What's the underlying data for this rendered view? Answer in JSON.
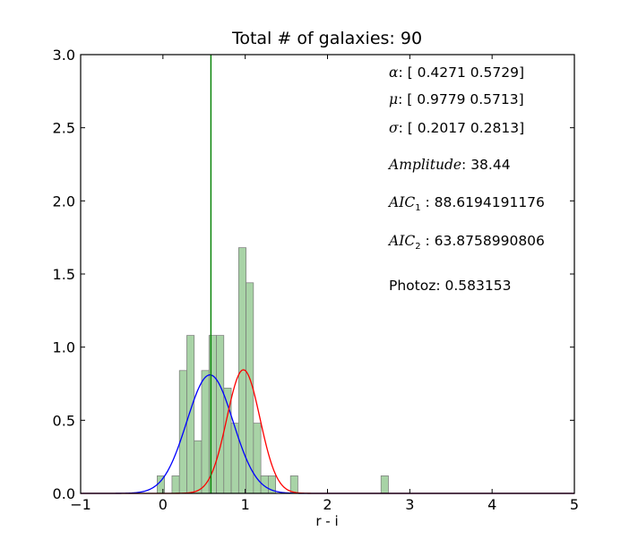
{
  "chart_data": {
    "type": "bar",
    "title": "Total # of galaxies: 90",
    "xlabel": "r - i",
    "ylabel": "",
    "xlim": [
      -1,
      5
    ],
    "ylim": [
      0,
      3.0
    ],
    "x_ticks": [
      "−1",
      "0",
      "1",
      "2",
      "3",
      "4",
      "5"
    ],
    "y_ticks": [
      "0.0",
      "0.5",
      "1.0",
      "1.5",
      "2.0",
      "2.5",
      "3.0"
    ],
    "grid": false,
    "histogram": {
      "bin_width": 0.09,
      "bin_left_edges": [
        -0.07,
        0.11,
        0.2,
        0.29,
        0.38,
        0.47,
        0.56,
        0.65,
        0.74,
        0.83,
        0.92,
        1.01,
        1.1,
        1.19,
        1.28,
        1.55,
        2.65
      ],
      "density": [
        0.12,
        0.12,
        0.84,
        1.08,
        0.36,
        0.84,
        1.08,
        1.08,
        0.72,
        0.48,
        1.68,
        1.44,
        0.48,
        0.12,
        0.12,
        0.12,
        0.12
      ],
      "color": "#a8d3a6",
      "edge_color": "#777777"
    },
    "curves": [
      {
        "color": "#0000ff",
        "mu": 0.5713,
        "sigma": 0.2813,
        "peak": 0.81
      },
      {
        "color": "#ff0000",
        "mu": 0.9779,
        "sigma": 0.2017,
        "peak": 0.845
      }
    ],
    "vline": {
      "x": 0.583153,
      "color": "#008000"
    },
    "annotations": [
      {
        "symbol": "α",
        "text": ": [ 0.4271  0.5729]"
      },
      {
        "symbol": "μ",
        "text": ": [ 0.9779  0.5713]"
      },
      {
        "symbol": "σ",
        "text": ": [ 0.2017  0.2813]"
      },
      {
        "symbol": "Amplitude",
        "text": ": 38.44"
      },
      {
        "symbol": "AIC",
        "sub": "1",
        "text": " : 88.6194191176"
      },
      {
        "symbol": "AIC",
        "sub": "2",
        "text": " : 63.8758990806"
      },
      {
        "symbol": "",
        "text": "Photoz: 0.583153"
      }
    ]
  }
}
